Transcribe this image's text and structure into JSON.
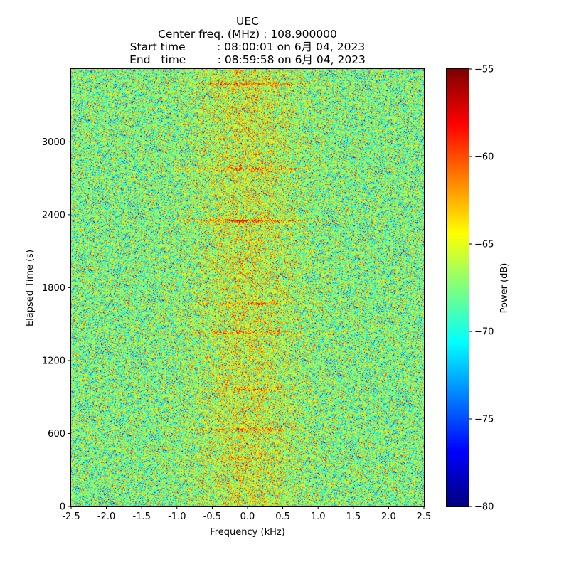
{
  "title": {
    "line1": "UEC",
    "line2": "Center freq. (MHz) : 108.900000",
    "line3": "Start time         : 08:00:01 on 6月 04, 2023",
    "line4": "End   time         : 08:59:58 on 6月 04, 2023"
  },
  "chart_data": {
    "type": "heatmap",
    "title": "UEC",
    "xlabel": "Frequency (kHz)",
    "ylabel": "Elapsed Time (s)",
    "xlim": [
      -2.5,
      2.5
    ],
    "ylim": [
      0,
      3599
    ],
    "x_ticks": [
      "-2.5",
      "-2.0",
      "-1.5",
      "-1.0",
      "-0.5",
      "0.0",
      "0.5",
      "1.0",
      "1.5",
      "2.0",
      "2.5"
    ],
    "x_tick_values": [
      -2.5,
      -2.0,
      -1.5,
      -1.0,
      -0.5,
      0.0,
      0.5,
      1.0,
      1.5,
      2.0,
      2.5
    ],
    "y_ticks": [
      "0",
      "600",
      "1200",
      "1800",
      "2400",
      "3000"
    ],
    "y_tick_values": [
      0,
      600,
      1200,
      1800,
      2400,
      3000
    ],
    "colorbar": {
      "label": "Power (dB)",
      "range": [
        -80,
        -55
      ],
      "ticks": [
        "−55",
        "−60",
        "−65",
        "−70",
        "−75",
        "−80"
      ],
      "tick_values": [
        -55,
        -60,
        -65,
        -70,
        -75,
        -80
      ],
      "colormap": "jet"
    },
    "colors": {
      "background": "#ffffff",
      "frame": "#000000"
    }
  }
}
